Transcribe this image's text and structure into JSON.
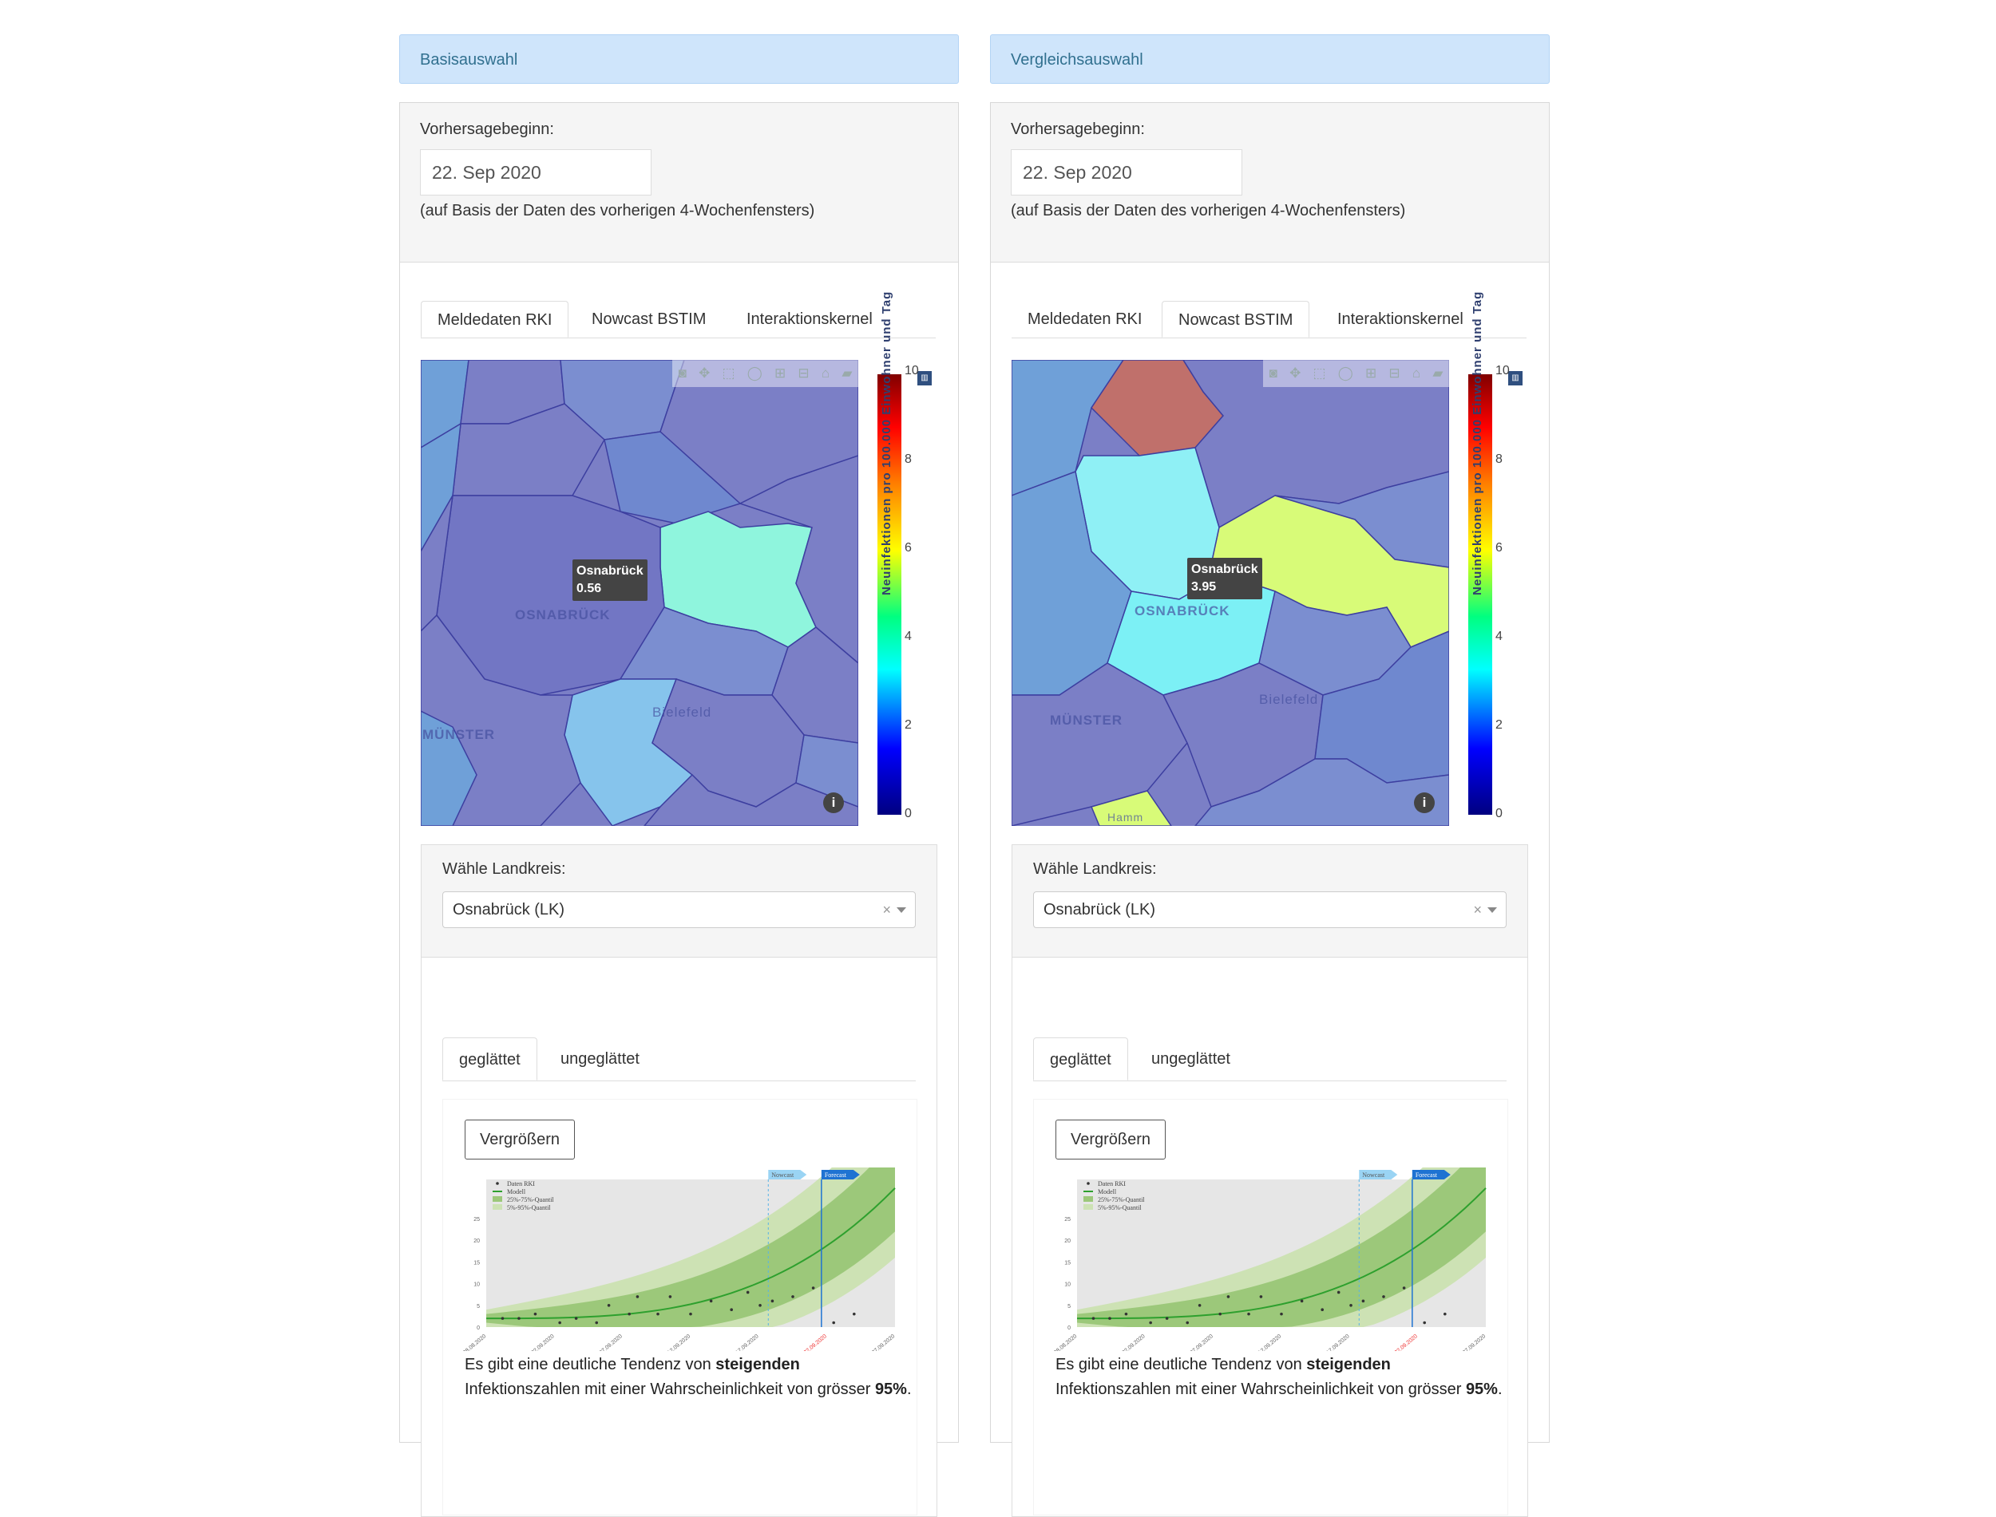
{
  "columns": [
    {
      "header": "Basisauswahl",
      "forecast_label": "Vorhersagebeginn:",
      "forecast_date": "22. Sep 2020",
      "forecast_note": "(auf Basis der Daten des vorherigen 4-Wochenfensters)",
      "tabs": [
        "Meldedaten RKI",
        "Nowcast BSTIM",
        "Interaktionskernel"
      ],
      "active_tab": "Meldedaten RKI",
      "map": {
        "tooltip_name": "Osnabrück",
        "tooltip_value": "0.56",
        "labels": [
          "OSNABRÜCK",
          "Bielefeld",
          "MÜNSTER"
        ]
      },
      "landkreis_label": "Wähle Landkreis:",
      "landkreis_value": "Osnabrück (LK)",
      "subtabs": [
        "geglättet",
        "ungeglättet"
      ],
      "active_subtab": "geglättet",
      "enlarge_button": "Vergrößern",
      "tendency": {
        "pre": "Es gibt eine deutliche Tendenz von ",
        "bold": "steigenden",
        "mid": " Infektionszahlen mit einer Wahrscheinlichkeit von grösser ",
        "prob": "95%",
        "post": "."
      }
    },
    {
      "header": "Vergleichsauswahl",
      "forecast_label": "Vorhersagebeginn:",
      "forecast_date": "22. Sep 2020",
      "forecast_note": "(auf Basis der Daten des vorherigen 4-Wochenfensters)",
      "tabs": [
        "Meldedaten RKI",
        "Nowcast BSTIM",
        "Interaktionskernel"
      ],
      "active_tab": "Nowcast BSTIM",
      "map": {
        "tooltip_name": "Osnabrück",
        "tooltip_value": "3.95",
        "labels": [
          "OSNABRÜCK",
          "Bielefeld",
          "MÜNSTER",
          "Hamm"
        ]
      },
      "landkreis_label": "Wähle Landkreis:",
      "landkreis_value": "Osnabrück (LK)",
      "subtabs": [
        "geglättet",
        "ungeglättet"
      ],
      "active_subtab": "geglättet",
      "enlarge_button": "Vergrößern",
      "tendency": {
        "pre": "Es gibt eine deutliche Tendenz von ",
        "bold": "steigenden",
        "mid": " Infektionszahlen mit einer Wahrscheinlichkeit von grösser ",
        "prob": "95%",
        "post": "."
      }
    }
  ],
  "colorbar": {
    "title": "Neuinfektionen pro 100.000 Einwohner und Tag",
    "ticks": [
      "0",
      "2",
      "4",
      "6",
      "8",
      "10"
    ]
  },
  "mini_chart": {
    "legend": [
      "Daten RKI",
      "Modell",
      "25%-75%-Quantil",
      "5%-95%-Quantil"
    ],
    "nowcast_label": "Nowcast",
    "forecast_label": "Forecast",
    "yticks": [
      "0",
      "5",
      "10",
      "15",
      "20",
      "25"
    ],
    "xticks": [
      "28.08.2020",
      "02.09.2020",
      "07.09.2020",
      "12.09.2020",
      "17.09.2020",
      "22.09.2020",
      "27.09.2020"
    ]
  },
  "colors": {
    "header_bg": "#cfe5fb",
    "model_line": "#2ea02e",
    "band_inner": "#9cc87a",
    "band_outer": "#cde2b4"
  }
}
